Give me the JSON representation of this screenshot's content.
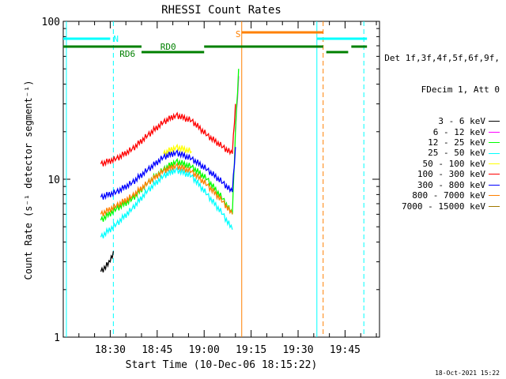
{
  "chart_data": {
    "type": "line",
    "title": "RHESSI Count Rates",
    "xlabel": "Start Time (10-Dec-06 18:15:22)",
    "ylabel": "Count Rate (s⁻¹ detector segment⁻¹)",
    "yscale": "log",
    "ylim": [
      1,
      100
    ],
    "xlim": [
      "18:15",
      "19:56"
    ],
    "y_ticks": [
      "1",
      "10",
      "100"
    ],
    "x_ticks": [
      "18:30",
      "18:45",
      "19:00",
      "19:15",
      "19:30",
      "19:45"
    ],
    "legend_header": [
      "Det 1f,3f,4f,5f,6f,9f,",
      "FDecim 1, Att 0"
    ],
    "series": [
      {
        "name": "3 - 6 keV",
        "color": "#000000",
        "x": [
          "18:27",
          "18:30",
          "18:31"
        ],
        "values": [
          2.6,
          3.0,
          3.5
        ]
      },
      {
        "name": "6 - 12 keV",
        "color": "#ff00ff",
        "x": [
          "19:10",
          "19:11"
        ],
        "values": [
          20,
          45
        ]
      },
      {
        "name": "12 - 25 keV",
        "color": "#00ff00",
        "x": [
          "18:27",
          "18:32",
          "18:37",
          "18:42",
          "18:47",
          "18:51",
          "18:56",
          "19:01",
          "19:06",
          "19:09",
          "19:10",
          "19:11"
        ],
        "values": [
          5.5,
          6.5,
          7.5,
          9.5,
          11.5,
          13.0,
          12.0,
          10.0,
          7.5,
          6.0,
          20,
          50
        ]
      },
      {
        "name": "25 - 50 keV",
        "color": "#00ffff",
        "x": [
          "18:27",
          "18:32",
          "18:37",
          "18:42",
          "18:47",
          "18:51",
          "18:56",
          "19:01",
          "19:06",
          "19:09"
        ],
        "values": [
          4.3,
          5.2,
          6.5,
          8.5,
          10.5,
          11.5,
          10.5,
          8.0,
          6.0,
          4.8
        ]
      },
      {
        "name": "50 - 100 keV",
        "color": "#ffff00",
        "x": [
          "18:47",
          "18:51",
          "18:56"
        ],
        "values": [
          14.5,
          16.0,
          15.0
        ]
      },
      {
        "name": "100 - 300 keV",
        "color": "#ff0000",
        "x": [
          "18:27",
          "18:32",
          "18:37",
          "18:42",
          "18:47",
          "18:51",
          "18:56",
          "19:01",
          "19:06",
          "19:09",
          "19:10"
        ],
        "values": [
          12.5,
          13.5,
          15.5,
          19.0,
          23.0,
          25.5,
          23.5,
          19.0,
          16.0,
          14.5,
          30
        ]
      },
      {
        "name": "300 - 800 keV",
        "color": "#0000ff",
        "x": [
          "18:27",
          "18:32",
          "18:37",
          "18:42",
          "18:47",
          "18:51",
          "18:56",
          "19:01",
          "19:06",
          "19:09",
          "19:10"
        ],
        "values": [
          7.7,
          8.3,
          9.5,
          11.5,
          13.8,
          14.8,
          13.5,
          11.5,
          9.5,
          8.3,
          16
        ]
      },
      {
        "name": "800 - 7000 keV",
        "color": "#ff8000",
        "x": [
          "18:27",
          "18:32",
          "18:37",
          "18:42",
          "18:47",
          "18:51",
          "18:56",
          "19:01",
          "19:06",
          "19:09"
        ],
        "values": [
          6.0,
          6.8,
          7.8,
          9.5,
          11.3,
          12.2,
          11.2,
          9.2,
          7.2,
          6.0
        ]
      },
      {
        "name": "7000 - 15000 keV",
        "color": "#a07800",
        "x": [],
        "values": []
      }
    ],
    "flags": [
      {
        "label": "N",
        "color": "#00ffff",
        "segments": [
          [
            "18:15",
            "18:30"
          ],
          [
            "19:36",
            "19:52"
          ]
        ]
      },
      {
        "label": "RD0",
        "color": "#008000",
        "segments": [
          [
            "18:15",
            "18:40"
          ],
          [
            "19:00",
            "19:38"
          ],
          [
            "19:47",
            "19:52"
          ]
        ]
      },
      {
        "label": "RD6",
        "color": "#008000",
        "segments": [
          [
            "18:40",
            "19:00"
          ],
          [
            "19:39",
            "19:46"
          ]
        ]
      },
      {
        "label": "S",
        "color": "#ff8000",
        "segments": [
          [
            "19:12",
            "19:38"
          ]
        ]
      }
    ],
    "vertical_lines": [
      {
        "time": "18:16",
        "color": "#00ffff",
        "style": "solid"
      },
      {
        "time": "18:31",
        "color": "#00ffff",
        "style": "dashed"
      },
      {
        "time": "19:12",
        "color": "#ff8000",
        "style": "solid"
      },
      {
        "time": "19:36",
        "color": "#00ffff",
        "style": "solid"
      },
      {
        "time": "19:38",
        "color": "#ff8000",
        "style": "dashed"
      },
      {
        "time": "19:51",
        "color": "#00ffff",
        "style": "dashed"
      }
    ]
  },
  "footer": {
    "timestamp": "18-Oct-2021 15:22"
  }
}
